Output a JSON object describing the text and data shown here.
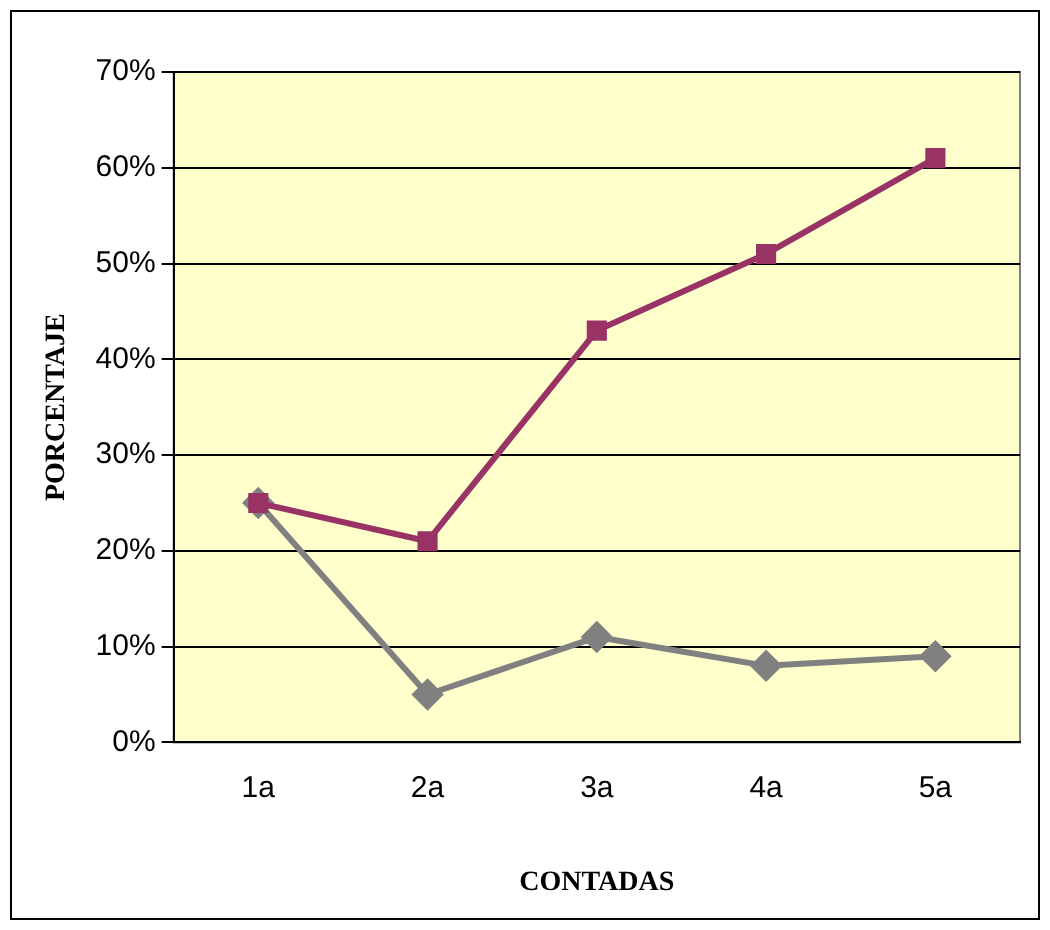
{
  "chart_data": {
    "type": "line",
    "xlabel": "CONTADAS",
    "ylabel": "PORCENTAJE",
    "categories": [
      "1a",
      "2a",
      "3a",
      "4a",
      "5a"
    ],
    "series": [
      {
        "color": "#993366",
        "marker": "square",
        "values": [
          25,
          21,
          43,
          51,
          61
        ]
      },
      {
        "color": "#808080",
        "marker": "diamond",
        "values": [
          25,
          5,
          11,
          8,
          9
        ]
      }
    ],
    "ylim": [
      0,
      70
    ],
    "yticks": [
      {
        "value": 0,
        "label": "0%"
      },
      {
        "value": 10,
        "label": "10%"
      },
      {
        "value": 20,
        "label": "20%"
      },
      {
        "value": 30,
        "label": "30%"
      },
      {
        "value": 40,
        "label": "40%"
      },
      {
        "value": 50,
        "label": "50%"
      },
      {
        "value": 60,
        "label": "60%"
      },
      {
        "value": 70,
        "label": "70%"
      }
    ],
    "grid": "y",
    "legend": false,
    "line_style": "solid"
  }
}
